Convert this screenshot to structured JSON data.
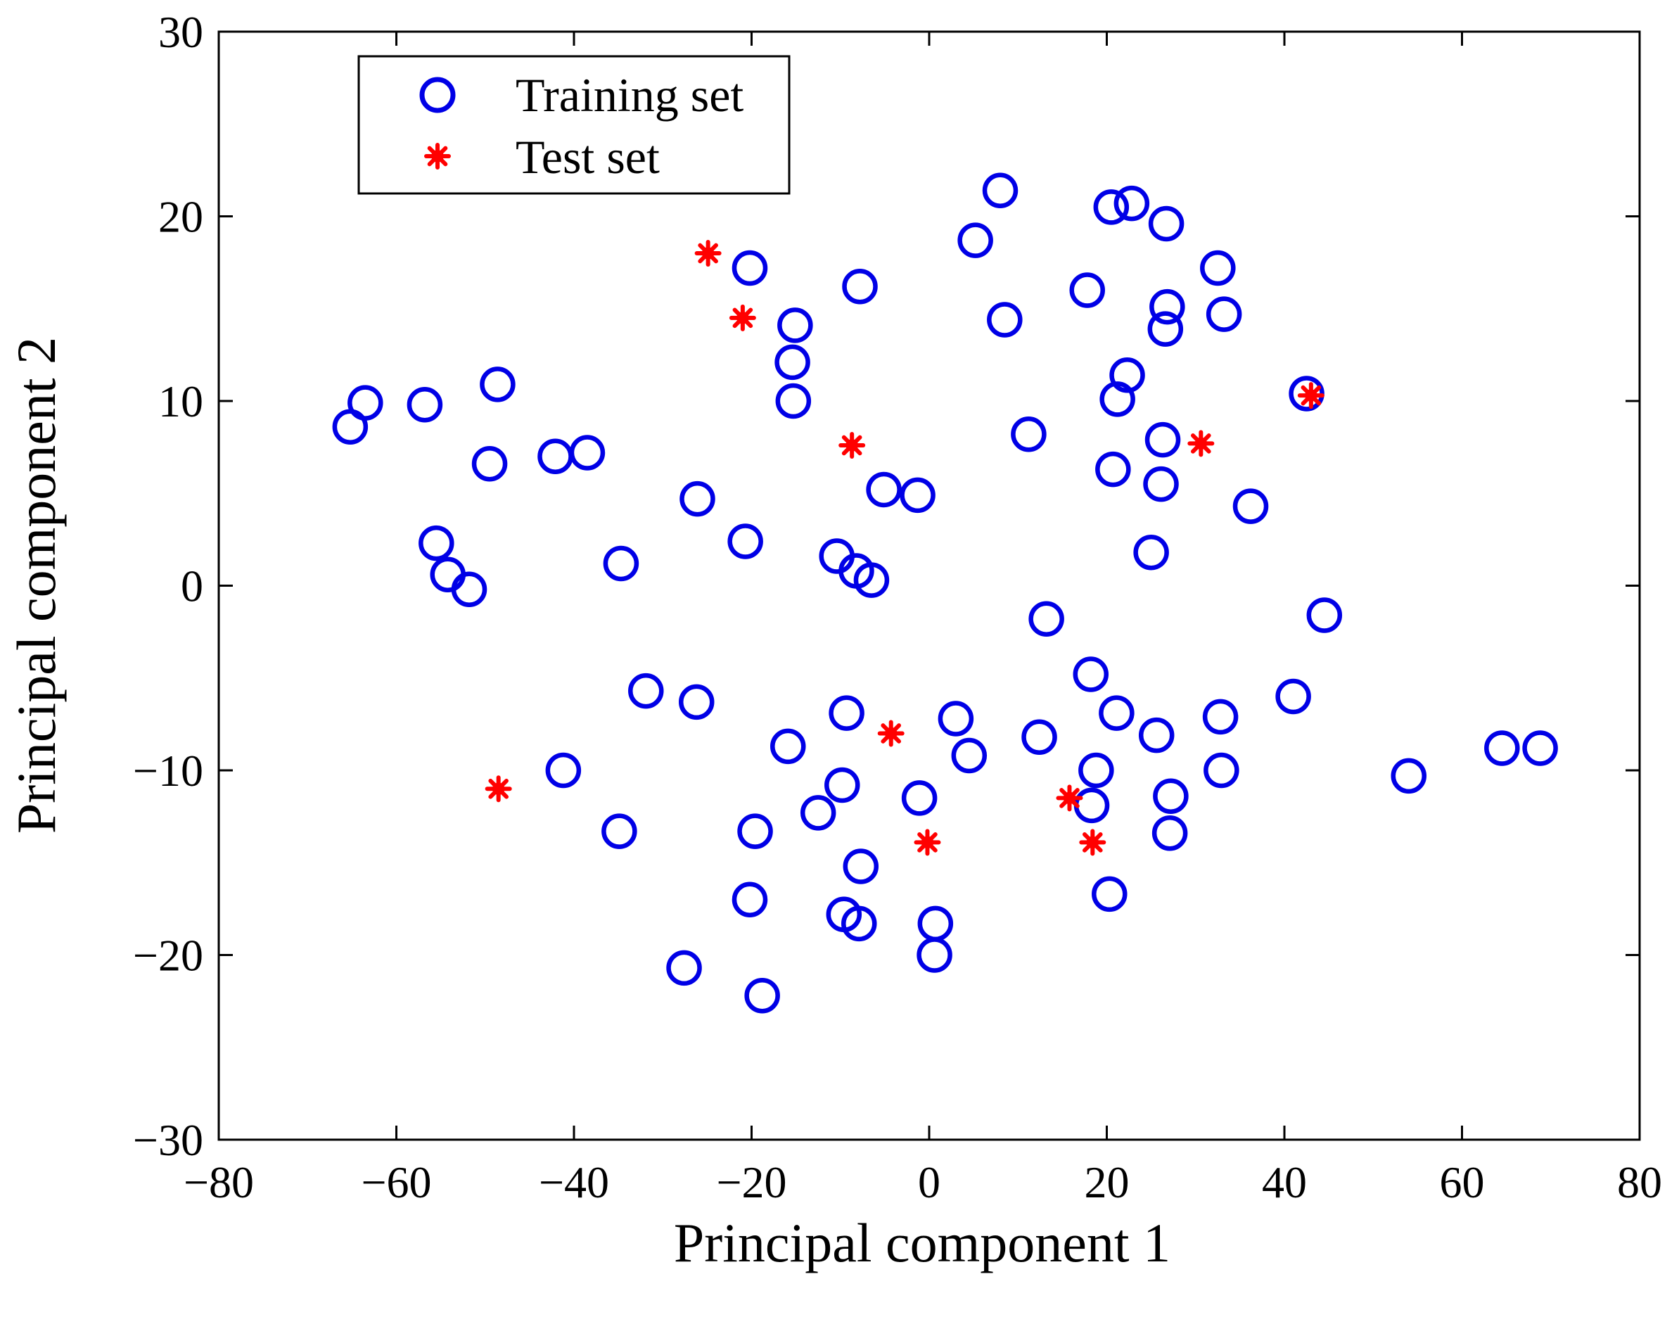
{
  "chart_data": {
    "type": "scatter",
    "title": "",
    "xlabel": "Principal component 1",
    "ylabel": "Principal component 2",
    "xlim": [
      -80,
      80
    ],
    "ylim": [
      -30,
      30
    ],
    "xticks": [
      -80,
      -60,
      -40,
      -20,
      0,
      20,
      40,
      60,
      80
    ],
    "yticks": [
      -30,
      -20,
      -10,
      0,
      10,
      20,
      30
    ],
    "xtick_labels": [
      "−80",
      "−60",
      "−40",
      "−20",
      "0",
      "20",
      "40",
      "60",
      "80"
    ],
    "ytick_labels": [
      "−30",
      "−20",
      "−10",
      "0",
      "10",
      "20",
      "30"
    ],
    "grid": false,
    "legend_position": "top-left",
    "series": [
      {
        "name": "Training set",
        "marker": "open-circle",
        "color": "#0000e6",
        "points": [
          [
            8,
            21.4
          ],
          [
            20.5,
            20.5
          ],
          [
            22.8,
            20.7
          ],
          [
            26.7,
            19.6
          ],
          [
            5.2,
            18.7
          ],
          [
            32.5,
            17.2
          ],
          [
            -20.2,
            17.2
          ],
          [
            -7.8,
            16.2
          ],
          [
            17.8,
            16.0
          ],
          [
            8.5,
            14.4
          ],
          [
            26.8,
            15.1
          ],
          [
            33.2,
            14.7
          ],
          [
            -15.1,
            14.1
          ],
          [
            26.6,
            13.9
          ],
          [
            -15.4,
            12.1
          ],
          [
            22.3,
            11.4
          ],
          [
            21.2,
            10.1
          ],
          [
            42.5,
            10.4
          ],
          [
            -15.3,
            10.0
          ],
          [
            -63.5,
            9.9
          ],
          [
            -56.8,
            9.8
          ],
          [
            -65.2,
            8.6
          ],
          [
            -48.6,
            10.9
          ],
          [
            11.2,
            8.2
          ],
          [
            26.3,
            7.9
          ],
          [
            -42.1,
            7.0
          ],
          [
            -38.5,
            7.2
          ],
          [
            -49.5,
            6.6
          ],
          [
            20.7,
            6.3
          ],
          [
            26.1,
            5.5
          ],
          [
            -5.1,
            5.2
          ],
          [
            -1.3,
            4.9
          ],
          [
            -26.1,
            4.7
          ],
          [
            36.2,
            4.3
          ],
          [
            -20.7,
            2.4
          ],
          [
            -55.5,
            2.3
          ],
          [
            25.0,
            1.8
          ],
          [
            -10.4,
            1.6
          ],
          [
            -8.2,
            0.8
          ],
          [
            -6.5,
            0.3
          ],
          [
            -54.2,
            0.6
          ],
          [
            -51.8,
            -0.2
          ],
          [
            -34.7,
            1.2
          ],
          [
            13.2,
            -1.8
          ],
          [
            44.5,
            -1.6
          ],
          [
            18.2,
            -4.8
          ],
          [
            -31.9,
            -5.7
          ],
          [
            -26.2,
            -6.3
          ],
          [
            21.1,
            -6.9
          ],
          [
            41.0,
            -6.0
          ],
          [
            -9.3,
            -6.9
          ],
          [
            3.0,
            -7.2
          ],
          [
            32.8,
            -7.1
          ],
          [
            12.4,
            -8.2
          ],
          [
            25.6,
            -8.1
          ],
          [
            -15.9,
            -8.7
          ],
          [
            4.5,
            -9.2
          ],
          [
            64.5,
            -8.8
          ],
          [
            68.8,
            -8.8
          ],
          [
            -41.2,
            -10.0
          ],
          [
            18.8,
            -10.0
          ],
          [
            32.9,
            -10.0
          ],
          [
            54.0,
            -10.3
          ],
          [
            -9.8,
            -10.8
          ],
          [
            -1.1,
            -11.5
          ],
          [
            18.3,
            -11.9
          ],
          [
            27.2,
            -11.4
          ],
          [
            -12.5,
            -12.3
          ],
          [
            -34.9,
            -13.3
          ],
          [
            -19.6,
            -13.3
          ],
          [
            27.1,
            -13.4
          ],
          [
            -7.7,
            -15.2
          ],
          [
            -20.2,
            -17.0
          ],
          [
            20.3,
            -16.7
          ],
          [
            -9.6,
            -17.8
          ],
          [
            -7.9,
            -18.3
          ],
          [
            0.7,
            -18.3
          ],
          [
            0.6,
            -20.0
          ],
          [
            -27.6,
            -20.7
          ],
          [
            -18.8,
            -22.2
          ]
        ]
      },
      {
        "name": "Test set",
        "marker": "asterisk",
        "color": "#ff0000",
        "points": [
          [
            -24.9,
            18.0
          ],
          [
            -21.0,
            14.5
          ],
          [
            43.0,
            10.3
          ],
          [
            -8.7,
            7.6
          ],
          [
            30.6,
            7.7
          ],
          [
            -4.3,
            -8.0
          ],
          [
            -48.5,
            -11.0
          ],
          [
            15.8,
            -11.5
          ],
          [
            -0.2,
            -13.9
          ],
          [
            18.4,
            -13.9
          ]
        ]
      }
    ]
  }
}
